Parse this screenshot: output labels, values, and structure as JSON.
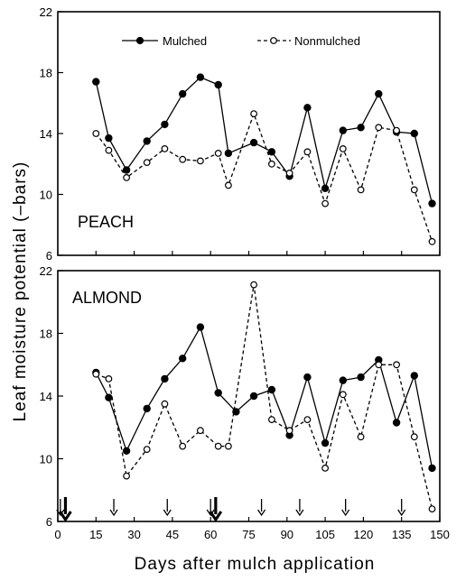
{
  "chart_data": [
    {
      "type": "line",
      "panel_label": "PEACH",
      "ylabel": "Leaf moisture potential (–bars)",
      "xlabel": "Days after mulch application",
      "xlim": [
        0,
        150
      ],
      "ylim": [
        6,
        22
      ],
      "xticks": [
        0,
        15,
        30,
        45,
        60,
        75,
        90,
        105,
        120,
        135,
        150
      ],
      "yticks": [
        6,
        10,
        14,
        18,
        22
      ],
      "legend": {
        "position": "top",
        "entries": [
          "Mulched",
          "Nonmulched"
        ]
      },
      "series": [
        {
          "name": "Mulched",
          "marker": "filled-circle",
          "line": "solid",
          "points": [
            [
              15,
              17.4
            ],
            [
              20,
              13.7
            ],
            [
              27,
              11.6
            ],
            [
              35,
              13.5
            ],
            [
              42,
              14.6
            ],
            [
              49,
              16.6
            ],
            [
              56,
              17.7
            ],
            [
              63,
              17.2
            ],
            [
              67,
              12.7
            ],
            [
              77,
              13.4
            ],
            [
              84,
              12.8
            ],
            [
              91,
              11.2
            ],
            [
              98,
              15.7
            ],
            [
              105,
              10.4
            ],
            [
              112,
              14.2
            ],
            [
              119,
              14.4
            ],
            [
              126,
              16.6
            ],
            [
              133,
              14.1
            ],
            [
              140,
              14.0
            ],
            [
              147,
              9.4
            ]
          ]
        },
        {
          "name": "Nonmulched",
          "marker": "open-circle",
          "line": "dashed",
          "points": [
            [
              15,
              14.0
            ],
            [
              20,
              12.9
            ],
            [
              27,
              11.1
            ],
            [
              35,
              12.1
            ],
            [
              42,
              13.0
            ],
            [
              49,
              12.3
            ],
            [
              56,
              12.2
            ],
            [
              63,
              12.7
            ],
            [
              67,
              10.6
            ],
            [
              77,
              15.3
            ],
            [
              84,
              12.0
            ],
            [
              91,
              11.4
            ],
            [
              98,
              12.8
            ],
            [
              105,
              9.4
            ],
            [
              112,
              13.0
            ],
            [
              119,
              10.3
            ],
            [
              126,
              14.4
            ],
            [
              133,
              14.2
            ],
            [
              140,
              10.3
            ],
            [
              147,
              6.9
            ]
          ]
        }
      ]
    },
    {
      "type": "line",
      "panel_label": "ALMOND",
      "ylabel": "Leaf moisture potential (–bars)",
      "xlabel": "Days after mulch application",
      "xlim": [
        0,
        150
      ],
      "ylim": [
        6,
        22
      ],
      "xticks": [
        0,
        15,
        30,
        45,
        60,
        75,
        90,
        105,
        120,
        135,
        150
      ],
      "yticks": [
        6,
        10,
        14,
        18,
        22
      ],
      "series": [
        {
          "name": "Mulched",
          "marker": "filled-circle",
          "line": "solid",
          "points": [
            [
              15,
              15.5
            ],
            [
              20,
              13.9
            ],
            [
              27,
              10.5
            ],
            [
              35,
              13.2
            ],
            [
              42,
              15.1
            ],
            [
              49,
              16.4
            ],
            [
              56,
              18.4
            ],
            [
              63,
              14.2
            ],
            [
              70,
              13.0
            ],
            [
              77,
              14.0
            ],
            [
              84,
              14.4
            ],
            [
              91,
              11.5
            ],
            [
              98,
              15.2
            ],
            [
              105,
              11.0
            ],
            [
              112,
              15.0
            ],
            [
              119,
              15.2
            ],
            [
              126,
              16.3
            ],
            [
              133,
              12.3
            ],
            [
              140,
              15.3
            ],
            [
              147,
              9.4
            ]
          ]
        },
        {
          "name": "Nonmulched",
          "marker": "open-circle",
          "line": "dashed",
          "points": [
            [
              15,
              15.4
            ],
            [
              20,
              15.1
            ],
            [
              27,
              8.9
            ],
            [
              35,
              10.6
            ],
            [
              42,
              13.5
            ],
            [
              49,
              10.8
            ],
            [
              56,
              11.8
            ],
            [
              63,
              10.8
            ],
            [
              67,
              10.8
            ],
            [
              77,
              21.1
            ],
            [
              84,
              12.5
            ],
            [
              91,
              11.8
            ],
            [
              98,
              12.5
            ],
            [
              105,
              9.4
            ],
            [
              112,
              14.1
            ],
            [
              119,
              11.4
            ],
            [
              126,
              16.0
            ],
            [
              133,
              16.0
            ],
            [
              140,
              11.4
            ],
            [
              147,
              6.8
            ]
          ]
        }
      ],
      "arrows": [
        {
          "day": 1,
          "size": "small"
        },
        {
          "day": 3,
          "size": "large"
        },
        {
          "day": 22,
          "size": "small"
        },
        {
          "day": 43,
          "size": "small"
        },
        {
          "day": 60,
          "size": "small"
        },
        {
          "day": 62,
          "size": "large"
        },
        {
          "day": 80,
          "size": "small"
        },
        {
          "day": 95,
          "size": "small"
        },
        {
          "day": 113,
          "size": "small"
        },
        {
          "day": 135,
          "size": "small"
        }
      ]
    }
  ]
}
